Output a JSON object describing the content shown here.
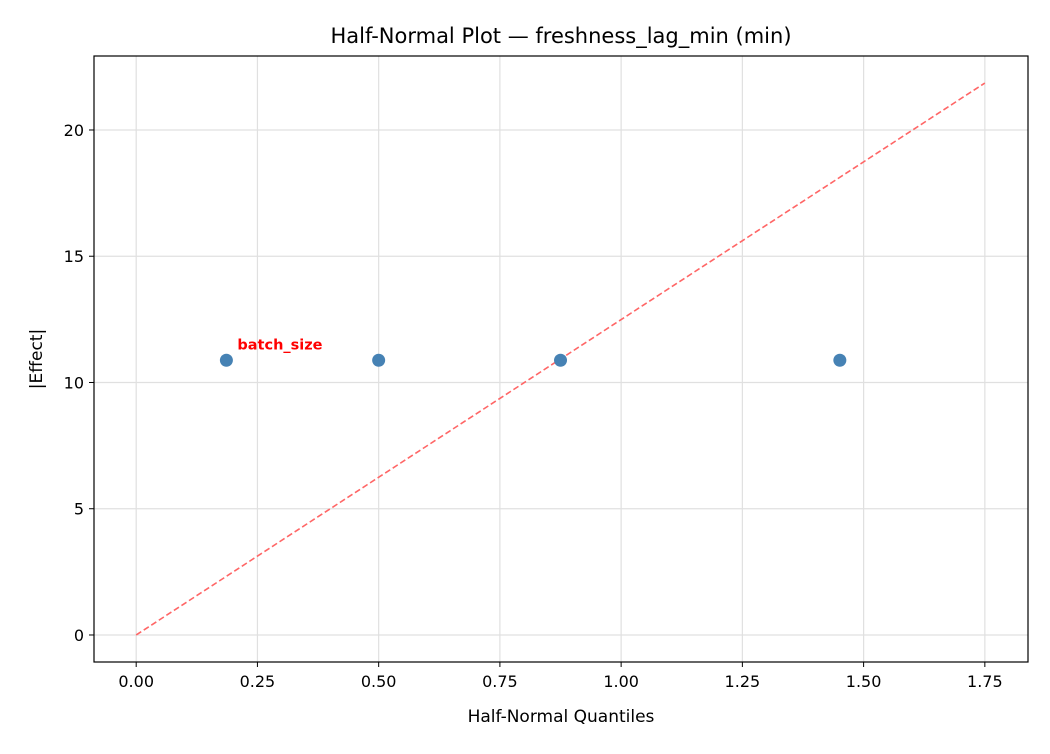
{
  "chart_data": {
    "type": "scatter",
    "title": "Half-Normal Plot — freshness_lag_min (min)",
    "xlabel": "Half-Normal Quantiles",
    "ylabel": "|Effect|",
    "xlim": [
      -0.087,
      1.839
    ],
    "ylim": [
      -1.07,
      22.93
    ],
    "xticks": [
      0.0,
      0.25,
      0.5,
      0.75,
      1.0,
      1.25,
      1.5,
      1.75
    ],
    "xtick_labels": [
      "0.00",
      "0.25",
      "0.50",
      "0.75",
      "1.00",
      "1.25",
      "1.50",
      "1.75"
    ],
    "yticks": [
      0,
      5,
      10,
      15,
      20
    ],
    "ytick_labels": [
      "0",
      "5",
      "10",
      "15",
      "20"
    ],
    "grid": true,
    "points": [
      {
        "x": 0.186,
        "y": 10.88
      },
      {
        "x": 0.5,
        "y": 10.88
      },
      {
        "x": 0.875,
        "y": 10.88
      },
      {
        "x": 1.451,
        "y": 10.88
      }
    ],
    "annotations": [
      {
        "text": "batch_size",
        "x": 0.186,
        "y": 10.88,
        "color": "#ff0000"
      }
    ],
    "reference_line": {
      "x": [
        0,
        1.75
      ],
      "y": [
        0,
        21.86
      ],
      "color": "#ff6666",
      "style": "dashed"
    },
    "point_color": "#4682b4"
  }
}
